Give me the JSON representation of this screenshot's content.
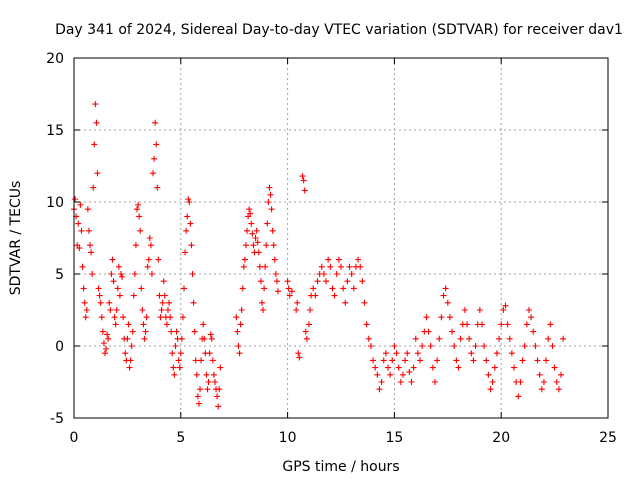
{
  "chart_data": {
    "type": "scatter",
    "title": "Day 341 of 2024, Sidereal Day-to-day VTEC variation (SDTVAR) for receiver dav1",
    "xlabel": "GPS time / hours",
    "ylabel": "SDTVAR / TECUs",
    "xlim": [
      0,
      25
    ],
    "ylim": [
      -5,
      20
    ],
    "xticks": [
      "0",
      "5",
      "10",
      "15",
      "20",
      "25"
    ],
    "yticks": [
      "-5",
      "0",
      "5",
      "10",
      "15",
      "20"
    ],
    "grid": true,
    "marker": "+",
    "color": "#ff0000",
    "series": [
      {
        "name": "dav1",
        "points": [
          [
            0.0,
            9.5
          ],
          [
            0.05,
            10.2
          ],
          [
            0.1,
            9.0
          ],
          [
            0.15,
            7.0
          ],
          [
            0.2,
            8.5
          ],
          [
            0.25,
            6.8
          ],
          [
            0.3,
            9.8
          ],
          [
            0.35,
            8.0
          ],
          [
            0.4,
            5.5
          ],
          [
            0.45,
            4.0
          ],
          [
            0.5,
            3.0
          ],
          [
            0.55,
            2.0
          ],
          [
            0.6,
            2.5
          ],
          [
            0.65,
            9.5
          ],
          [
            0.7,
            8.0
          ],
          [
            0.75,
            7.0
          ],
          [
            0.8,
            6.5
          ],
          [
            0.85,
            5.0
          ],
          [
            0.9,
            11.0
          ],
          [
            0.95,
            14.0
          ],
          [
            1.0,
            16.8
          ],
          [
            1.05,
            15.5
          ],
          [
            1.1,
            12.0
          ],
          [
            1.15,
            4.0
          ],
          [
            1.2,
            3.5
          ],
          [
            1.25,
            3.0
          ],
          [
            1.3,
            2.0
          ],
          [
            1.35,
            1.0
          ],
          [
            1.4,
            0.2
          ],
          [
            1.45,
            -0.5
          ],
          [
            1.5,
            -0.2
          ],
          [
            1.55,
            0.8
          ],
          [
            1.6,
            0.5
          ],
          [
            1.65,
            3.0
          ],
          [
            1.7,
            2.5
          ],
          [
            1.75,
            5.0
          ],
          [
            1.8,
            6.0
          ],
          [
            1.85,
            4.5
          ],
          [
            1.9,
            2.0
          ],
          [
            1.95,
            1.5
          ],
          [
            2.0,
            2.5
          ],
          [
            2.05,
            4.0
          ],
          [
            2.1,
            5.5
          ],
          [
            2.15,
            3.5
          ],
          [
            2.2,
            5.0
          ],
          [
            2.25,
            4.8
          ],
          [
            2.3,
            2.0
          ],
          [
            2.35,
            0.5
          ],
          [
            2.4,
            -0.5
          ],
          [
            2.45,
            -1.0
          ],
          [
            2.5,
            0.5
          ],
          [
            2.55,
            1.5
          ],
          [
            2.6,
            -1.5
          ],
          [
            2.65,
            -1.0
          ],
          [
            2.7,
            0.0
          ],
          [
            2.75,
            1.0
          ],
          [
            2.8,
            3.5
          ],
          [
            2.85,
            5.0
          ],
          [
            2.9,
            7.0
          ],
          [
            2.95,
            9.5
          ],
          [
            3.0,
            9.8
          ],
          [
            3.05,
            9.0
          ],
          [
            3.1,
            8.0
          ],
          [
            3.15,
            4.0
          ],
          [
            3.2,
            2.5
          ],
          [
            3.25,
            1.5
          ],
          [
            3.3,
            0.5
          ],
          [
            3.35,
            1.0
          ],
          [
            3.4,
            2.0
          ],
          [
            3.45,
            5.5
          ],
          [
            3.5,
            6.0
          ],
          [
            3.55,
            7.5
          ],
          [
            3.6,
            7.0
          ],
          [
            3.65,
            5.0
          ],
          [
            3.7,
            12.0
          ],
          [
            3.75,
            13.0
          ],
          [
            3.8,
            15.5
          ],
          [
            3.85,
            14.0
          ],
          [
            3.9,
            11.0
          ],
          [
            3.95,
            6.0
          ],
          [
            4.0,
            3.5
          ],
          [
            4.05,
            2.0
          ],
          [
            4.1,
            2.5
          ],
          [
            4.15,
            3.0
          ],
          [
            4.2,
            4.5
          ],
          [
            4.25,
            3.5
          ],
          [
            4.3,
            2.0
          ],
          [
            4.35,
            1.5
          ],
          [
            4.4,
            2.5
          ],
          [
            4.45,
            3.0
          ],
          [
            4.5,
            2.0
          ],
          [
            4.55,
            1.0
          ],
          [
            4.6,
            -0.5
          ],
          [
            4.65,
            -1.5
          ],
          [
            4.7,
            -2.0
          ],
          [
            4.75,
            0.0
          ],
          [
            4.8,
            1.0
          ],
          [
            4.85,
            0.5
          ],
          [
            4.9,
            -1.0
          ],
          [
            4.95,
            -1.5
          ],
          [
            5.0,
            -0.5
          ],
          [
            5.05,
            0.5
          ],
          [
            5.1,
            2.0
          ],
          [
            5.15,
            4.0
          ],
          [
            5.2,
            6.5
          ],
          [
            5.25,
            8.0
          ],
          [
            5.3,
            9.0
          ],
          [
            5.35,
            10.2
          ],
          [
            5.4,
            10.0
          ],
          [
            5.45,
            8.5
          ],
          [
            5.5,
            7.0
          ],
          [
            5.55,
            5.0
          ],
          [
            5.6,
            3.0
          ],
          [
            5.65,
            1.0
          ],
          [
            5.7,
            -1.0
          ],
          [
            5.75,
            -2.0
          ],
          [
            5.8,
            -3.5
          ],
          [
            5.85,
            -4.0
          ],
          [
            5.9,
            -3.0
          ],
          [
            5.95,
            -1.0
          ],
          [
            6.0,
            0.5
          ],
          [
            6.05,
            1.5
          ],
          [
            6.1,
            0.5
          ],
          [
            6.15,
            -0.5
          ],
          [
            6.2,
            -2.0
          ],
          [
            6.25,
            -3.0
          ],
          [
            6.3,
            -2.5
          ],
          [
            6.35,
            -0.5
          ],
          [
            6.4,
            0.8
          ],
          [
            6.45,
            0.5
          ],
          [
            6.5,
            -1.0
          ],
          [
            6.55,
            -2.0
          ],
          [
            6.6,
            -2.5
          ],
          [
            6.65,
            -3.0
          ],
          [
            6.7,
            -3.5
          ],
          [
            6.75,
            -4.2
          ],
          [
            6.8,
            -3.0
          ],
          [
            6.85,
            -1.5
          ],
          [
            7.6,
            2.0
          ],
          [
            7.65,
            1.0
          ],
          [
            7.7,
            0.0
          ],
          [
            7.75,
            -0.5
          ],
          [
            7.8,
            1.5
          ],
          [
            7.85,
            2.5
          ],
          [
            7.9,
            4.0
          ],
          [
            7.95,
            5.5
          ],
          [
            8.0,
            6.0
          ],
          [
            8.05,
            7.0
          ],
          [
            8.1,
            8.0
          ],
          [
            8.15,
            9.0
          ],
          [
            8.2,
            9.5
          ],
          [
            8.25,
            9.2
          ],
          [
            8.3,
            8.5
          ],
          [
            8.35,
            7.8
          ],
          [
            8.4,
            7.0
          ],
          [
            8.45,
            6.5
          ],
          [
            8.5,
            7.5
          ],
          [
            8.55,
            8.0
          ],
          [
            8.6,
            7.2
          ],
          [
            8.65,
            6.5
          ],
          [
            8.7,
            5.5
          ],
          [
            8.75,
            4.5
          ],
          [
            8.8,
            3.0
          ],
          [
            8.85,
            2.5
          ],
          [
            8.9,
            4.0
          ],
          [
            8.95,
            5.5
          ],
          [
            9.0,
            7.0
          ],
          [
            9.05,
            8.5
          ],
          [
            9.1,
            10.0
          ],
          [
            9.15,
            11.0
          ],
          [
            9.2,
            10.5
          ],
          [
            9.25,
            9.5
          ],
          [
            9.3,
            8.0
          ],
          [
            9.35,
            7.0
          ],
          [
            9.4,
            6.0
          ],
          [
            9.45,
            5.0
          ],
          [
            9.5,
            4.5
          ],
          [
            9.55,
            3.8
          ],
          [
            10.0,
            4.5
          ],
          [
            10.05,
            4.0
          ],
          [
            10.1,
            3.5
          ],
          [
            10.2,
            3.8
          ],
          [
            10.4,
            2.5
          ],
          [
            10.45,
            3.0
          ],
          [
            10.5,
            -0.5
          ],
          [
            10.55,
            -0.8
          ],
          [
            10.7,
            11.8
          ],
          [
            10.75,
            11.5
          ],
          [
            10.8,
            10.8
          ],
          [
            10.85,
            1.0
          ],
          [
            10.9,
            0.5
          ],
          [
            11.0,
            1.5
          ],
          [
            11.05,
            2.5
          ],
          [
            11.1,
            3.5
          ],
          [
            11.2,
            4.0
          ],
          [
            11.3,
            3.5
          ],
          [
            11.4,
            4.5
          ],
          [
            11.5,
            5.0
          ],
          [
            11.6,
            5.5
          ],
          [
            11.7,
            5.0
          ],
          [
            11.8,
            4.5
          ],
          [
            11.9,
            6.0
          ],
          [
            12.0,
            5.5
          ],
          [
            12.1,
            4.0
          ],
          [
            12.2,
            3.5
          ],
          [
            12.3,
            5.0
          ],
          [
            12.4,
            6.0
          ],
          [
            12.5,
            5.5
          ],
          [
            12.6,
            4.0
          ],
          [
            12.7,
            3.0
          ],
          [
            12.8,
            4.5
          ],
          [
            12.9,
            5.5
          ],
          [
            13.0,
            5.0
          ],
          [
            13.1,
            4.0
          ],
          [
            13.2,
            5.5
          ],
          [
            13.3,
            6.0
          ],
          [
            13.4,
            5.5
          ],
          [
            13.5,
            4.5
          ],
          [
            13.6,
            3.0
          ],
          [
            13.7,
            1.5
          ],
          [
            13.8,
            0.5
          ],
          [
            13.9,
            0.0
          ],
          [
            14.0,
            -1.0
          ],
          [
            14.1,
            -1.5
          ],
          [
            14.2,
            -2.0
          ],
          [
            14.3,
            -3.0
          ],
          [
            14.4,
            -2.5
          ],
          [
            14.5,
            -1.0
          ],
          [
            14.6,
            -0.5
          ],
          [
            14.7,
            -1.5
          ],
          [
            14.8,
            -2.0
          ],
          [
            14.9,
            -1.0
          ],
          [
            15.0,
            0.0
          ],
          [
            15.1,
            -0.5
          ],
          [
            15.2,
            -1.5
          ],
          [
            15.3,
            -2.5
          ],
          [
            15.4,
            -2.0
          ],
          [
            15.5,
            -1.0
          ],
          [
            15.6,
            -0.5
          ],
          [
            15.7,
            -1.8
          ],
          [
            15.8,
            -2.5
          ],
          [
            15.9,
            -1.5
          ],
          [
            16.0,
            0.5
          ],
          [
            16.1,
            -0.5
          ],
          [
            16.2,
            -1.0
          ],
          [
            16.3,
            0.0
          ],
          [
            16.4,
            1.0
          ],
          [
            16.5,
            2.0
          ],
          [
            16.6,
            1.0
          ],
          [
            16.7,
            0.0
          ],
          [
            16.8,
            -1.5
          ],
          [
            16.9,
            -2.5
          ],
          [
            17.0,
            -1.0
          ],
          [
            17.1,
            0.5
          ],
          [
            17.2,
            2.0
          ],
          [
            17.3,
            3.5
          ],
          [
            17.4,
            4.0
          ],
          [
            17.5,
            3.0
          ],
          [
            17.6,
            2.0
          ],
          [
            17.7,
            1.0
          ],
          [
            17.8,
            0.0
          ],
          [
            17.9,
            -1.0
          ],
          [
            18.0,
            -1.5
          ],
          [
            18.1,
            0.5
          ],
          [
            18.2,
            1.5
          ],
          [
            18.3,
            2.5
          ],
          [
            18.4,
            1.5
          ],
          [
            18.5,
            0.5
          ],
          [
            18.6,
            -0.5
          ],
          [
            18.7,
            -1.0
          ],
          [
            18.8,
            0.0
          ],
          [
            18.9,
            1.5
          ],
          [
            19.0,
            2.5
          ],
          [
            19.1,
            1.5
          ],
          [
            19.2,
            0.0
          ],
          [
            19.3,
            -1.0
          ],
          [
            19.4,
            -2.0
          ],
          [
            19.5,
            -3.0
          ],
          [
            19.6,
            -2.5
          ],
          [
            19.7,
            -1.5
          ],
          [
            19.8,
            -0.5
          ],
          [
            19.9,
            0.5
          ],
          [
            20.0,
            1.5
          ],
          [
            20.1,
            2.5
          ],
          [
            20.2,
            2.8
          ],
          [
            20.3,
            1.5
          ],
          [
            20.4,
            0.5
          ],
          [
            20.5,
            -0.5
          ],
          [
            20.6,
            -1.5
          ],
          [
            20.7,
            -2.5
          ],
          [
            20.8,
            -3.5
          ],
          [
            20.9,
            -2.5
          ],
          [
            21.0,
            -1.0
          ],
          [
            21.1,
            0.0
          ],
          [
            21.2,
            1.5
          ],
          [
            21.3,
            2.5
          ],
          [
            21.4,
            2.0
          ],
          [
            21.5,
            1.0
          ],
          [
            21.6,
            0.0
          ],
          [
            21.7,
            -1.0
          ],
          [
            21.8,
            -2.0
          ],
          [
            21.9,
            -3.0
          ],
          [
            22.0,
            -2.5
          ],
          [
            22.1,
            -1.0
          ],
          [
            22.2,
            0.5
          ],
          [
            22.3,
            1.5
          ],
          [
            22.4,
            0.0
          ],
          [
            22.5,
            -1.5
          ],
          [
            22.6,
            -2.5
          ],
          [
            22.7,
            -3.0
          ],
          [
            22.8,
            -2.0
          ],
          [
            22.9,
            0.5
          ]
        ]
      }
    ]
  }
}
